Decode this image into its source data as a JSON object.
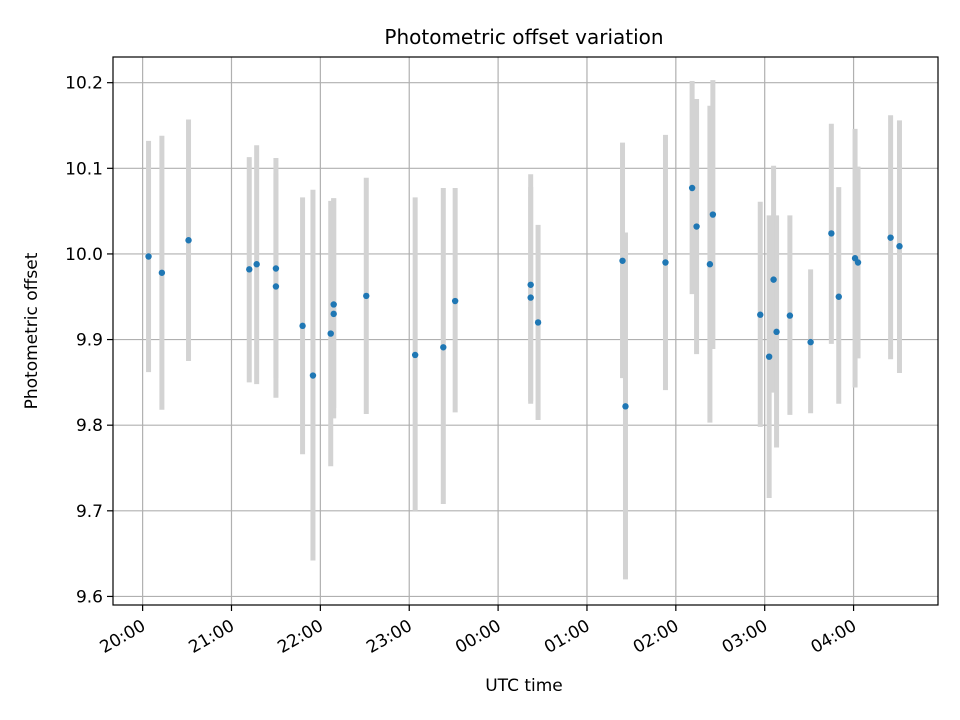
{
  "chart_data": {
    "type": "scatter",
    "title": "Photometric offset variation",
    "xlabel": "UTC time",
    "ylabel": "Photometric offset",
    "x_unit": "UTC time (HH:MM)",
    "xlim": [
      "19:40",
      "04:57"
    ],
    "ylim": [
      9.59,
      10.23
    ],
    "grid": true,
    "x_ticks": [
      {
        "time": "20:00",
        "label": "20:00"
      },
      {
        "time": "21:00",
        "label": "21:00"
      },
      {
        "time": "22:00",
        "label": "22:00"
      },
      {
        "time": "23:00",
        "label": "23:00"
      },
      {
        "time": "00:00",
        "label": "00:00"
      },
      {
        "time": "01:00",
        "label": "01:00"
      },
      {
        "time": "02:00",
        "label": "02:00"
      },
      {
        "time": "03:00",
        "label": "03:00"
      },
      {
        "time": "04:00",
        "label": "04:00"
      }
    ],
    "y_ticks": [
      9.6,
      9.7,
      9.8,
      9.9,
      10.0,
      10.1,
      10.2
    ],
    "colors": {
      "points": "#1f77b4",
      "error_bars": "#d3d3d3",
      "grid": "#b0b0b0"
    },
    "series": [
      {
        "points": [
          {
            "x": "20:04",
            "y": 9.997,
            "lo": 9.862,
            "hi": 10.132
          },
          {
            "x": "20:13",
            "y": 9.978,
            "lo": 9.818,
            "hi": 10.138
          },
          {
            "x": "20:31",
            "y": 10.016,
            "lo": 9.875,
            "hi": 10.157
          },
          {
            "x": "21:12",
            "y": 9.982,
            "lo": 9.85,
            "hi": 10.113
          },
          {
            "x": "21:17",
            "y": 9.988,
            "lo": 9.848,
            "hi": 10.127
          },
          {
            "x": "21:30",
            "y": 9.983,
            "lo": 9.855,
            "hi": 10.112
          },
          {
            "x": "21:30",
            "y": 9.962,
            "lo": 9.832,
            "hi": 10.094
          },
          {
            "x": "21:48",
            "y": 9.916,
            "lo": 9.766,
            "hi": 10.066
          },
          {
            "x": "21:55",
            "y": 9.858,
            "lo": 9.642,
            "hi": 10.075
          },
          {
            "x": "22:07",
            "y": 9.907,
            "lo": 9.752,
            "hi": 10.062
          },
          {
            "x": "22:09",
            "y": 9.93,
            "lo": 9.808,
            "hi": 10.065
          },
          {
            "x": "22:09",
            "y": 9.941,
            "lo": 9.82,
            "hi": 10.065
          },
          {
            "x": "22:31",
            "y": 9.951,
            "lo": 9.813,
            "hi": 10.089
          },
          {
            "x": "23:04",
            "y": 9.882,
            "lo": 9.7,
            "hi": 10.066
          },
          {
            "x": "23:23",
            "y": 9.891,
            "lo": 9.708,
            "hi": 10.077
          },
          {
            "x": "23:31",
            "y": 9.945,
            "lo": 9.815,
            "hi": 10.077
          },
          {
            "x": "00:22",
            "y": 9.964,
            "lo": 9.828,
            "hi": 10.093
          },
          {
            "x": "00:22",
            "y": 9.949,
            "lo": 9.825,
            "hi": 10.078
          },
          {
            "x": "00:27",
            "y": 9.92,
            "lo": 9.806,
            "hi": 10.034
          },
          {
            "x": "01:24",
            "y": 9.992,
            "lo": 9.855,
            "hi": 10.13
          },
          {
            "x": "01:26",
            "y": 9.822,
            "lo": 9.62,
            "hi": 10.025
          },
          {
            "x": "01:53",
            "y": 9.99,
            "lo": 9.841,
            "hi": 10.139
          },
          {
            "x": "02:11",
            "y": 10.077,
            "lo": 9.953,
            "hi": 10.202
          },
          {
            "x": "02:14",
            "y": 10.032,
            "lo": 9.883,
            "hi": 10.181
          },
          {
            "x": "02:23",
            "y": 9.988,
            "lo": 9.803,
            "hi": 10.173
          },
          {
            "x": "02:25",
            "y": 10.046,
            "lo": 9.889,
            "hi": 10.203
          },
          {
            "x": "02:57",
            "y": 9.929,
            "lo": 9.798,
            "hi": 10.061
          },
          {
            "x": "03:03",
            "y": 9.88,
            "lo": 9.715,
            "hi": 10.045
          },
          {
            "x": "03:06",
            "y": 9.97,
            "lo": 9.838,
            "hi": 10.103
          },
          {
            "x": "03:08",
            "y": 9.909,
            "lo": 9.774,
            "hi": 10.045
          },
          {
            "x": "03:17",
            "y": 9.928,
            "lo": 9.812,
            "hi": 10.045
          },
          {
            "x": "03:31",
            "y": 9.897,
            "lo": 9.814,
            "hi": 9.982
          },
          {
            "x": "03:45",
            "y": 10.024,
            "lo": 9.895,
            "hi": 10.152
          },
          {
            "x": "03:50",
            "y": 9.95,
            "lo": 9.825,
            "hi": 10.078
          },
          {
            "x": "04:01",
            "y": 9.995,
            "lo": 9.844,
            "hi": 10.146
          },
          {
            "x": "04:03",
            "y": 9.99,
            "lo": 9.878,
            "hi": 10.102
          },
          {
            "x": "04:25",
            "y": 10.019,
            "lo": 9.877,
            "hi": 10.162
          },
          {
            "x": "04:31",
            "y": 10.009,
            "lo": 9.861,
            "hi": 10.156
          }
        ]
      }
    ]
  }
}
